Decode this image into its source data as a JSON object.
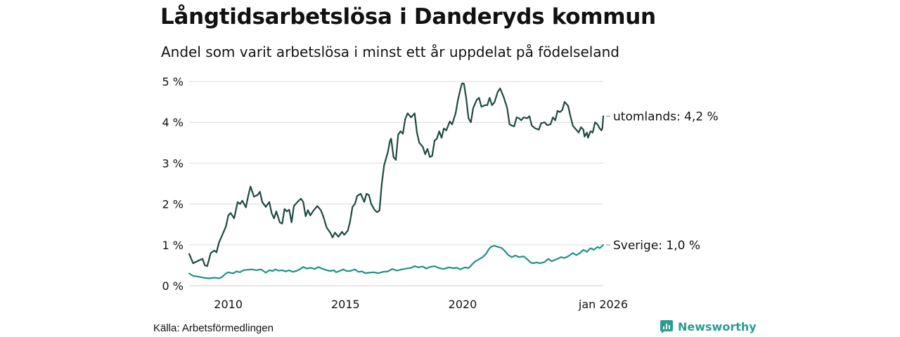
{
  "title": "Långtidsarbetslösa i Danderyds kommun",
  "subtitle": "Andel som varit arbetslösa i minst ett år uppdelat på födelseland",
  "source": "Källa: Arbetsförmedlingen",
  "brand": {
    "name": "Newsworthy",
    "icon": "newsworthy-logo-icon",
    "color": "#2a9d8f"
  },
  "chart_data": {
    "type": "line",
    "title": "Långtidsarbetslösa i Danderyds kommun",
    "xlabel": "",
    "ylabel": "",
    "xlim": [
      2008.33,
      2026.0
    ],
    "ylim": [
      0,
      5
    ],
    "y_ticks": [
      0,
      1,
      2,
      3,
      4,
      5
    ],
    "y_tick_labels": [
      "0 %",
      "1 %",
      "2 %",
      "3 %",
      "4 %",
      "5 %"
    ],
    "x_ticks": [
      2010,
      2015,
      2020,
      2026.0
    ],
    "x_tick_labels": [
      "2010",
      "2015",
      "2020",
      "jan 2026"
    ],
    "grid": "horizontal",
    "series": [
      {
        "name": "utomlands",
        "end_label": "utomlands: 4,2 %",
        "color": "#1e4a42",
        "points": [
          [
            2008.33,
            0.78
          ],
          [
            2008.5,
            0.55
          ],
          [
            2008.75,
            0.62
          ],
          [
            2008.9,
            0.66
          ],
          [
            2009.0,
            0.5
          ],
          [
            2009.1,
            0.48
          ],
          [
            2009.25,
            0.8
          ],
          [
            2009.4,
            0.86
          ],
          [
            2009.5,
            0.82
          ],
          [
            2009.6,
            1.05
          ],
          [
            2009.75,
            1.25
          ],
          [
            2009.9,
            1.45
          ],
          [
            2010.0,
            1.72
          ],
          [
            2010.1,
            1.78
          ],
          [
            2010.25,
            1.65
          ],
          [
            2010.4,
            2.05
          ],
          [
            2010.5,
            2.0
          ],
          [
            2010.6,
            2.08
          ],
          [
            2010.75,
            1.92
          ],
          [
            2010.85,
            2.2
          ],
          [
            2010.95,
            2.43
          ],
          [
            2011.1,
            2.18
          ],
          [
            2011.25,
            2.22
          ],
          [
            2011.35,
            2.3
          ],
          [
            2011.45,
            2.05
          ],
          [
            2011.6,
            1.93
          ],
          [
            2011.75,
            2.05
          ],
          [
            2011.85,
            1.78
          ],
          [
            2011.95,
            1.65
          ],
          [
            2012.05,
            1.82
          ],
          [
            2012.2,
            1.55
          ],
          [
            2012.3,
            1.52
          ],
          [
            2012.4,
            1.88
          ],
          [
            2012.5,
            1.82
          ],
          [
            2012.6,
            1.86
          ],
          [
            2012.7,
            1.55
          ],
          [
            2012.8,
            1.95
          ],
          [
            2012.95,
            2.05
          ],
          [
            2013.1,
            2.13
          ],
          [
            2013.2,
            2.05
          ],
          [
            2013.3,
            1.7
          ],
          [
            2013.4,
            1.85
          ],
          [
            2013.5,
            1.72
          ],
          [
            2013.65,
            1.85
          ],
          [
            2013.8,
            1.95
          ],
          [
            2013.95,
            1.85
          ],
          [
            2014.05,
            1.7
          ],
          [
            2014.2,
            1.42
          ],
          [
            2014.35,
            1.3
          ],
          [
            2014.45,
            1.18
          ],
          [
            2014.55,
            1.3
          ],
          [
            2014.7,
            1.2
          ],
          [
            2014.85,
            1.32
          ],
          [
            2014.95,
            1.25
          ],
          [
            2015.1,
            1.35
          ],
          [
            2015.2,
            1.58
          ],
          [
            2015.3,
            1.93
          ],
          [
            2015.4,
            2.0
          ],
          [
            2015.5,
            2.2
          ],
          [
            2015.65,
            2.25
          ],
          [
            2015.8,
            2.05
          ],
          [
            2015.9,
            2.25
          ],
          [
            2016.0,
            2.22
          ],
          [
            2016.1,
            2.0
          ],
          [
            2016.25,
            1.85
          ],
          [
            2016.35,
            1.8
          ],
          [
            2016.45,
            1.84
          ],
          [
            2016.55,
            2.5
          ],
          [
            2016.65,
            2.95
          ],
          [
            2016.8,
            3.25
          ],
          [
            2016.9,
            3.55
          ],
          [
            2016.95,
            3.6
          ],
          [
            2017.05,
            3.15
          ],
          [
            2017.15,
            3.08
          ],
          [
            2017.25,
            3.7
          ],
          [
            2017.35,
            3.78
          ],
          [
            2017.45,
            3.72
          ],
          [
            2017.55,
            4.08
          ],
          [
            2017.65,
            4.22
          ],
          [
            2017.8,
            4.12
          ],
          [
            2017.95,
            4.22
          ],
          [
            2018.05,
            3.75
          ],
          [
            2018.15,
            3.5
          ],
          [
            2018.3,
            3.4
          ],
          [
            2018.4,
            3.22
          ],
          [
            2018.5,
            3.35
          ],
          [
            2018.6,
            3.15
          ],
          [
            2018.7,
            3.18
          ],
          [
            2018.8,
            3.55
          ],
          [
            2018.9,
            3.6
          ],
          [
            2019.0,
            3.78
          ],
          [
            2019.1,
            3.62
          ],
          [
            2019.2,
            3.85
          ],
          [
            2019.3,
            3.8
          ],
          [
            2019.45,
            4.02
          ],
          [
            2019.55,
            3.95
          ],
          [
            2019.7,
            4.22
          ],
          [
            2019.8,
            4.55
          ],
          [
            2019.9,
            4.8
          ],
          [
            2019.97,
            4.95
          ],
          [
            2020.05,
            4.95
          ],
          [
            2020.15,
            4.6
          ],
          [
            2020.25,
            4.1
          ],
          [
            2020.35,
            4.0
          ],
          [
            2020.45,
            4.35
          ],
          [
            2020.6,
            4.55
          ],
          [
            2020.7,
            4.6
          ],
          [
            2020.8,
            4.38
          ],
          [
            2020.95,
            4.42
          ],
          [
            2021.05,
            4.42
          ],
          [
            2021.15,
            4.6
          ],
          [
            2021.25,
            4.42
          ],
          [
            2021.35,
            4.48
          ],
          [
            2021.5,
            4.75
          ],
          [
            2021.6,
            4.83
          ],
          [
            2021.75,
            4.62
          ],
          [
            2021.9,
            4.35
          ],
          [
            2022.0,
            3.95
          ],
          [
            2022.1,
            3.92
          ],
          [
            2022.2,
            3.9
          ],
          [
            2022.3,
            4.12
          ],
          [
            2022.4,
            4.1
          ],
          [
            2022.5,
            4.05
          ],
          [
            2022.6,
            4.12
          ],
          [
            2022.75,
            4.1
          ],
          [
            2022.85,
            4.15
          ],
          [
            2022.95,
            3.92
          ],
          [
            2023.1,
            3.85
          ],
          [
            2023.25,
            3.82
          ],
          [
            2023.35,
            3.98
          ],
          [
            2023.5,
            4.0
          ],
          [
            2023.6,
            3.93
          ],
          [
            2023.75,
            3.95
          ],
          [
            2023.85,
            4.12
          ],
          [
            2023.95,
            4.05
          ],
          [
            2024.05,
            4.28
          ],
          [
            2024.15,
            4.25
          ],
          [
            2024.25,
            4.3
          ],
          [
            2024.35,
            4.5
          ],
          [
            2024.5,
            4.4
          ],
          [
            2024.6,
            4.15
          ],
          [
            2024.7,
            3.92
          ],
          [
            2024.8,
            3.85
          ],
          [
            2024.95,
            3.75
          ],
          [
            2025.05,
            3.88
          ],
          [
            2025.15,
            3.82
          ],
          [
            2025.2,
            3.65
          ],
          [
            2025.3,
            3.75
          ],
          [
            2025.35,
            3.62
          ],
          [
            2025.45,
            3.78
          ],
          [
            2025.55,
            3.75
          ],
          [
            2025.65,
            4.0
          ],
          [
            2025.75,
            3.95
          ],
          [
            2025.85,
            3.85
          ],
          [
            2025.92,
            3.8
          ],
          [
            2025.96,
            3.85
          ],
          [
            2026.0,
            4.15
          ]
        ]
      },
      {
        "name": "Sverige",
        "end_label": "Sverige: 1,0 %",
        "color": "#1f9184",
        "points": [
          [
            2008.33,
            0.3
          ],
          [
            2008.5,
            0.24
          ],
          [
            2008.75,
            0.22
          ],
          [
            2009.0,
            0.19
          ],
          [
            2009.2,
            0.18
          ],
          [
            2009.4,
            0.2
          ],
          [
            2009.6,
            0.18
          ],
          [
            2009.75,
            0.22
          ],
          [
            2009.9,
            0.3
          ],
          [
            2010.0,
            0.33
          ],
          [
            2010.2,
            0.3
          ],
          [
            2010.35,
            0.35
          ],
          [
            2010.5,
            0.33
          ],
          [
            2010.65,
            0.38
          ],
          [
            2010.8,
            0.39
          ],
          [
            2011.0,
            0.4
          ],
          [
            2011.2,
            0.38
          ],
          [
            2011.4,
            0.4
          ],
          [
            2011.5,
            0.36
          ],
          [
            2011.6,
            0.32
          ],
          [
            2011.75,
            0.38
          ],
          [
            2011.9,
            0.36
          ],
          [
            2012.0,
            0.4
          ],
          [
            2012.15,
            0.37
          ],
          [
            2012.3,
            0.38
          ],
          [
            2012.45,
            0.35
          ],
          [
            2012.6,
            0.38
          ],
          [
            2012.75,
            0.34
          ],
          [
            2012.9,
            0.36
          ],
          [
            2013.05,
            0.4
          ],
          [
            2013.2,
            0.46
          ],
          [
            2013.35,
            0.42
          ],
          [
            2013.5,
            0.44
          ],
          [
            2013.7,
            0.41
          ],
          [
            2013.85,
            0.46
          ],
          [
            2014.0,
            0.42
          ],
          [
            2014.2,
            0.38
          ],
          [
            2014.35,
            0.36
          ],
          [
            2014.5,
            0.38
          ],
          [
            2014.6,
            0.33
          ],
          [
            2014.75,
            0.36
          ],
          [
            2014.9,
            0.4
          ],
          [
            2015.05,
            0.36
          ],
          [
            2015.2,
            0.36
          ],
          [
            2015.4,
            0.4
          ],
          [
            2015.55,
            0.34
          ],
          [
            2015.7,
            0.35
          ],
          [
            2015.85,
            0.31
          ],
          [
            2016.0,
            0.32
          ],
          [
            2016.2,
            0.33
          ],
          [
            2016.4,
            0.31
          ],
          [
            2016.6,
            0.34
          ],
          [
            2016.8,
            0.35
          ],
          [
            2017.0,
            0.41
          ],
          [
            2017.2,
            0.37
          ],
          [
            2017.4,
            0.4
          ],
          [
            2017.6,
            0.42
          ],
          [
            2017.8,
            0.44
          ],
          [
            2017.95,
            0.48
          ],
          [
            2018.1,
            0.45
          ],
          [
            2018.3,
            0.47
          ],
          [
            2018.45,
            0.42
          ],
          [
            2018.6,
            0.46
          ],
          [
            2018.8,
            0.48
          ],
          [
            2019.0,
            0.43
          ],
          [
            2019.2,
            0.41
          ],
          [
            2019.4,
            0.45
          ],
          [
            2019.6,
            0.43
          ],
          [
            2019.75,
            0.44
          ],
          [
            2019.9,
            0.4
          ],
          [
            2020.1,
            0.45
          ],
          [
            2020.25,
            0.43
          ],
          [
            2020.4,
            0.52
          ],
          [
            2020.55,
            0.6
          ],
          [
            2020.7,
            0.65
          ],
          [
            2020.85,
            0.7
          ],
          [
            2021.0,
            0.78
          ],
          [
            2021.1,
            0.88
          ],
          [
            2021.2,
            0.95
          ],
          [
            2021.35,
            0.98
          ],
          [
            2021.5,
            0.95
          ],
          [
            2021.65,
            0.93
          ],
          [
            2021.8,
            0.85
          ],
          [
            2021.95,
            0.75
          ],
          [
            2022.1,
            0.7
          ],
          [
            2022.25,
            0.74
          ],
          [
            2022.4,
            0.7
          ],
          [
            2022.6,
            0.72
          ],
          [
            2022.75,
            0.65
          ],
          [
            2022.9,
            0.57
          ],
          [
            2023.0,
            0.55
          ],
          [
            2023.15,
            0.57
          ],
          [
            2023.3,
            0.55
          ],
          [
            2023.5,
            0.58
          ],
          [
            2023.65,
            0.66
          ],
          [
            2023.8,
            0.6
          ],
          [
            2024.0,
            0.65
          ],
          [
            2024.2,
            0.7
          ],
          [
            2024.35,
            0.68
          ],
          [
            2024.5,
            0.72
          ],
          [
            2024.7,
            0.8
          ],
          [
            2024.85,
            0.75
          ],
          [
            2025.0,
            0.8
          ],
          [
            2025.15,
            0.88
          ],
          [
            2025.3,
            0.83
          ],
          [
            2025.45,
            0.92
          ],
          [
            2025.6,
            0.88
          ],
          [
            2025.75,
            0.95
          ],
          [
            2025.85,
            0.92
          ],
          [
            2026.0,
            1.0
          ]
        ]
      }
    ]
  }
}
